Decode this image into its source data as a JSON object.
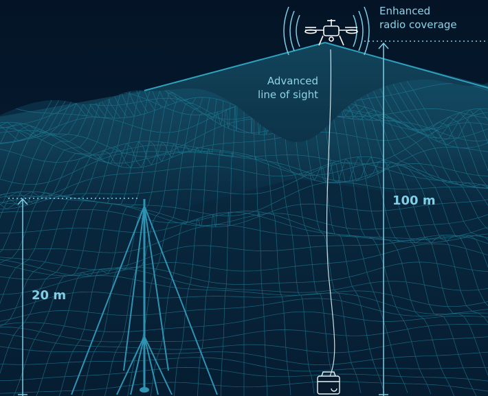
{
  "labels": {
    "line_of_sight": [
      "Advanced",
      "line of sight"
    ],
    "radio_coverage": [
      "Enhanced",
      "radio coverage"
    ]
  },
  "heights": {
    "drone": "100 m",
    "mast": "20 m"
  },
  "colors": {
    "background": "#061a2c",
    "wireframe": "#1f7f96",
    "accent": "#7fd0e6",
    "beam": "#3aa7c0",
    "mast": "#2f94b4"
  },
  "icons": {
    "drone": "tethered-drone-icon",
    "ground_station": "tether-station-icon",
    "mast": "telescopic-mast-icon"
  }
}
